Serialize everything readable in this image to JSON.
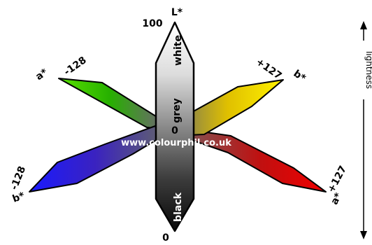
{
  "diagram": {
    "axes": {
      "l_label": "L*",
      "l_top": "100",
      "l_bottom": "0",
      "a_label_neg": "a*",
      "a_neg": "-128",
      "a_label_pos": "a*",
      "a_pos": "+127",
      "b_label_neg": "b*",
      "b_neg": "-128",
      "b_label_pos": "b*",
      "b_pos": "+127",
      "center": "0"
    },
    "lightness_words": {
      "white": "white",
      "grey": "grey",
      "black": "black"
    },
    "watermark": "www.colourphil.co.uk",
    "side_label": "lightness",
    "colors": {
      "green": "#22c000",
      "red": "#e00000",
      "yellow": "#ffe600",
      "blue": "#1414ff",
      "outline": "#000000"
    }
  }
}
